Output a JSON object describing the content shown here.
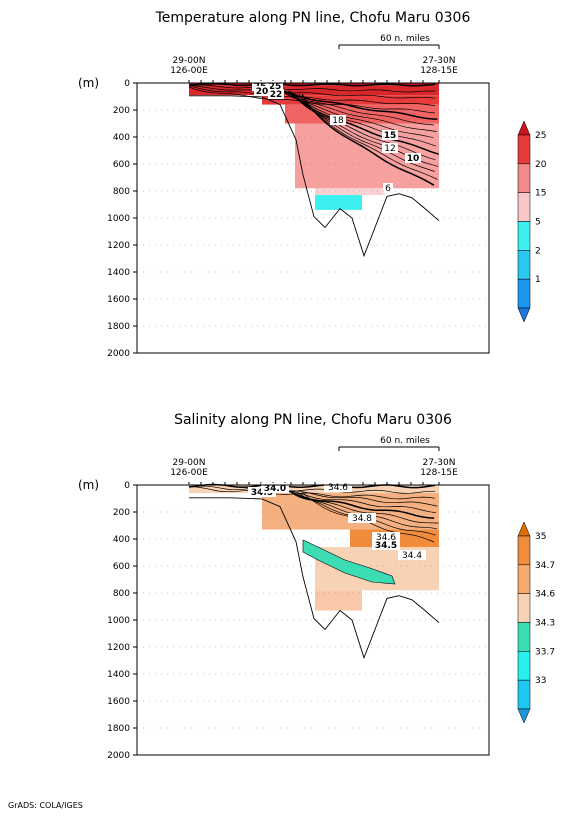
{
  "footer": "GrADS: COLA/IGES",
  "chart_data": [
    {
      "type": "contour_section",
      "title": "Temperature along PN line, Chofu Maru 0306",
      "ylabel": "(m)",
      "ylim": [
        2000,
        0
      ],
      "yticks": [
        0,
        200,
        400,
        600,
        800,
        1000,
        1200,
        1400,
        1600,
        1800,
        2000
      ],
      "start_label": [
        "29-00N",
        "126-00E"
      ],
      "end_label": [
        "27-30N",
        "128-15E"
      ],
      "scale_label": "60 n. miles",
      "contour_labels": [
        "25",
        "25",
        "20",
        "22",
        "18",
        "15",
        "12",
        "10",
        "6"
      ],
      "legend_levels": [
        "25",
        "20",
        "15",
        "5",
        "2",
        "1"
      ],
      "legend_colors": [
        "#c8141e",
        "#e83c3c",
        "#f08c8c",
        "#f8c8c8",
        "#3cf0f0",
        "#28c8f0",
        "#1e96f0",
        "#1e78dc"
      ]
    },
    {
      "type": "contour_section",
      "title": "Salinity along PN line, Chofu Maru 0306",
      "ylabel": "(m)",
      "ylim": [
        2000,
        0
      ],
      "yticks": [
        0,
        200,
        400,
        600,
        800,
        1000,
        1200,
        1400,
        1600,
        1800,
        2000
      ],
      "start_label": [
        "29-00N",
        "126-00E"
      ],
      "end_label": [
        "27-30N",
        "128-15E"
      ],
      "scale_label": "60 n. miles",
      "contour_labels": [
        "34.5",
        "34.0",
        "34.6",
        "34.8",
        "34.6",
        "34.5",
        "34.4"
      ],
      "legend_levels": [
        "35",
        "34.7",
        "34.6",
        "34.3",
        "33.7",
        "33"
      ],
      "legend_colors": [
        "#e06e00",
        "#f08c3c",
        "#f8aa6e",
        "#f8d2b4",
        "#3cdcb4",
        "#28f0f0",
        "#1ec8f0",
        "#1e96dc"
      ]
    }
  ]
}
